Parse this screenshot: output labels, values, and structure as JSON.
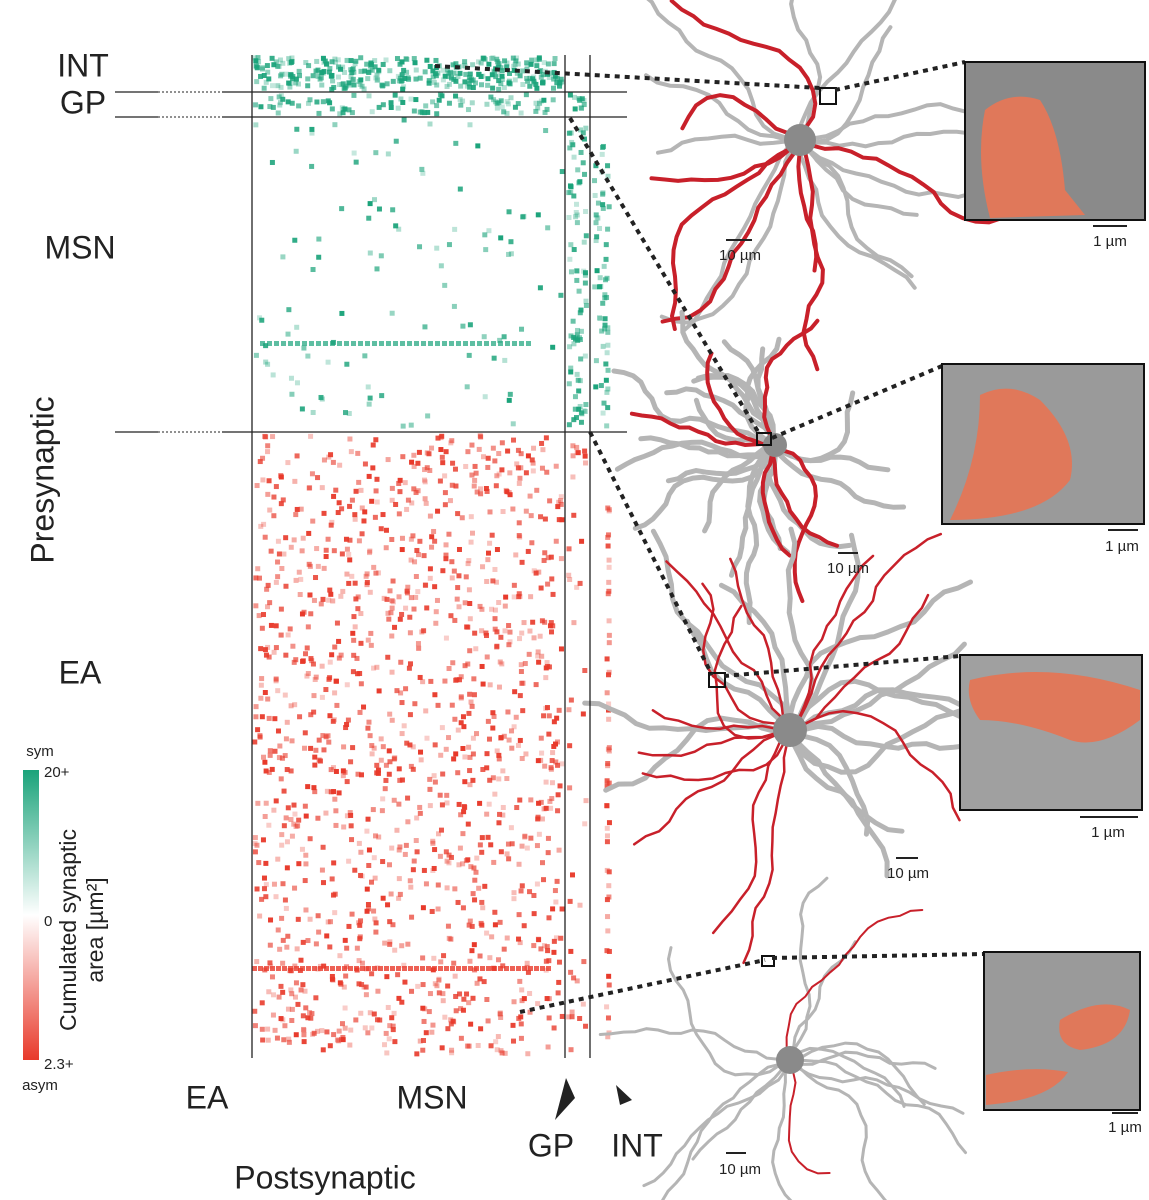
{
  "matrix": {
    "row_labels": [
      "INT",
      "GP",
      "MSN",
      "EA"
    ],
    "col_labels": [
      "EA",
      "MSN",
      "GP",
      "INT"
    ],
    "y_axis_label": "Presynaptic",
    "x_axis_label": "Postsynaptic"
  },
  "colorbar": {
    "top_label": "sym",
    "top_value_label": "20+",
    "mid_label": "0",
    "bottom_value_label": "2.3+",
    "bottom_label": "asym",
    "title": [
      "Cumulated synaptic",
      "area [µm²]"
    ]
  },
  "panels": [
    {
      "neuron_scale_bar": "10 µm",
      "em_scale_bar": "1 µm"
    },
    {
      "neuron_scale_bar": "10 µm",
      "em_scale_bar": "1 µm"
    },
    {
      "neuron_scale_bar": "10 µm",
      "em_scale_bar": "1 µm"
    },
    {
      "neuron_scale_bar": "10 µm",
      "em_scale_bar": "1 µm"
    }
  ]
}
